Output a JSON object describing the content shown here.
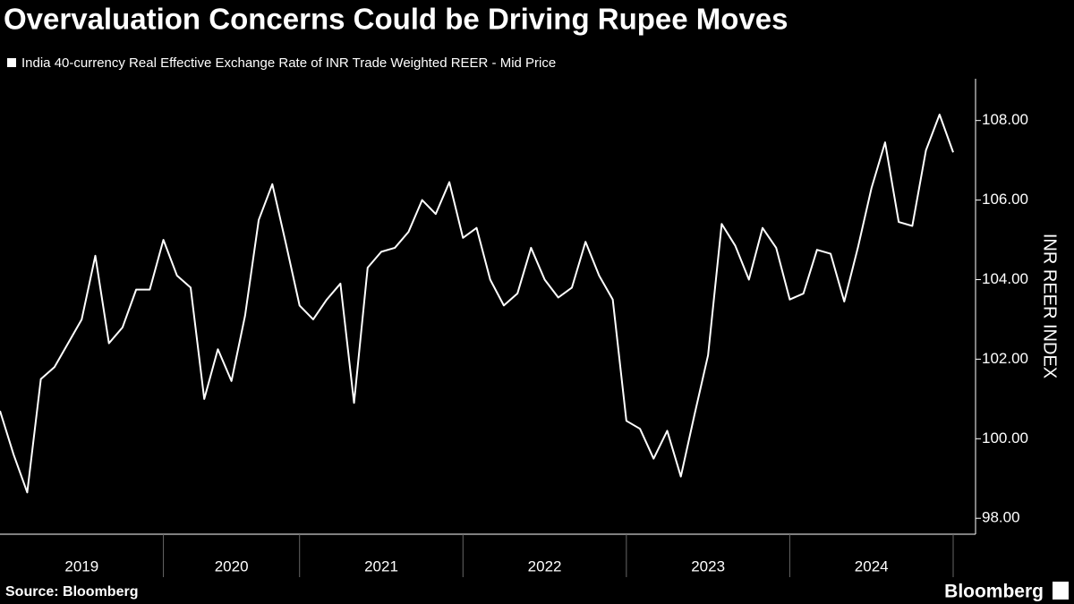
{
  "chart_data": {
    "type": "line",
    "title": "Overvaluation Concerns Could be Driving Rupee Moves",
    "series": [
      {
        "name": "India 40-currency Real Effective Exchange Rate of INR Trade Weighted REER - Mid Price",
        "color": "#ffffff",
        "values": [
          100.7,
          99.6,
          98.65,
          101.5,
          101.8,
          102.4,
          103.0,
          104.6,
          102.4,
          102.8,
          103.75,
          103.75,
          105.0,
          104.1,
          103.8,
          101.0,
          102.25,
          101.45,
          103.1,
          105.5,
          106.4,
          104.9,
          103.35,
          103.0,
          103.5,
          103.9,
          100.9,
          104.3,
          104.7,
          104.8,
          105.2,
          106.0,
          105.65,
          106.45,
          105.05,
          105.3,
          104.0,
          103.35,
          103.65,
          104.8,
          104.0,
          103.55,
          103.8,
          104.95,
          104.1,
          103.5,
          100.45,
          100.25,
          99.5,
          100.2,
          99.05,
          100.6,
          102.1,
          105.4,
          104.85,
          104.0,
          105.3,
          104.8,
          103.5,
          103.65,
          104.75,
          104.65,
          103.45,
          104.8,
          106.3,
          107.45,
          105.45,
          105.35,
          107.25,
          108.15,
          107.2
        ]
      }
    ],
    "xlim": [
      0,
      70
    ],
    "xticks": [
      12,
      22,
      34,
      46,
      58,
      70
    ],
    "xtick_labels": [
      {
        "value": 6,
        "label": "2019"
      },
      {
        "value": 17,
        "label": "2020"
      },
      {
        "value": 28,
        "label": "2021"
      },
      {
        "value": 40,
        "label": "2022"
      },
      {
        "value": 52,
        "label": "2023"
      },
      {
        "value": 64,
        "label": "2024"
      }
    ],
    "ylim": [
      97.6,
      109.05
    ],
    "yticks": [
      {
        "value": 98,
        "label": "98.00"
      },
      {
        "value": 100,
        "label": "100.00"
      },
      {
        "value": 102,
        "label": "102.00"
      },
      {
        "value": 104,
        "label": "104.00"
      },
      {
        "value": 106,
        "label": "106.00"
      },
      {
        "value": 108,
        "label": "108.00"
      }
    ],
    "ylabel": "INR REER INDEX",
    "source": "Source: Bloomberg",
    "brand": "Bloomberg"
  }
}
